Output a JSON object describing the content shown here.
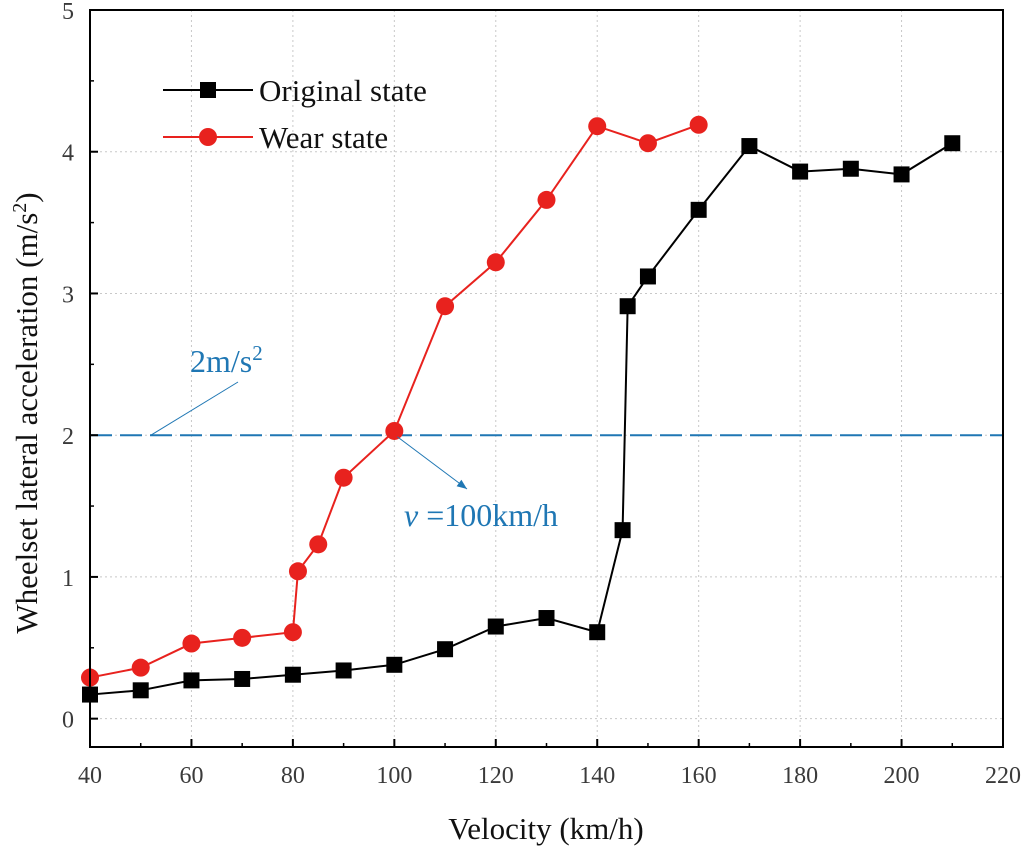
{
  "chart_data": {
    "type": "line",
    "title": "",
    "xlabel": "Velocity (km/h)",
    "ylabel_main": "Wheelset lateral acceleration  (m/s",
    "ylabel_sup": "2",
    "ylabel_close": ")",
    "xlim": [
      40,
      220
    ],
    "ylim": [
      -0.2,
      5
    ],
    "xticks": [
      40,
      60,
      80,
      100,
      120,
      140,
      160,
      180,
      200,
      220
    ],
    "yticks": [
      0,
      1,
      2,
      3,
      4,
      5
    ],
    "grid": true,
    "legend_position": "top-left",
    "series": [
      {
        "name": "Original state",
        "color": "#000000",
        "marker": "square",
        "x": [
          40,
          50,
          60,
          70,
          80,
          90,
          100,
          110,
          120,
          130,
          140,
          145,
          146,
          150,
          160,
          170,
          180,
          190,
          200,
          210
        ],
        "y": [
          0.17,
          0.2,
          0.27,
          0.28,
          0.31,
          0.34,
          0.38,
          0.49,
          0.65,
          0.71,
          0.61,
          1.33,
          2.91,
          3.12,
          3.59,
          4.04,
          3.86,
          3.88,
          3.84,
          4.06
        ]
      },
      {
        "name": "Wear state",
        "color": "#e8221e",
        "marker": "circle",
        "x": [
          40,
          50,
          60,
          70,
          80,
          81,
          85,
          90,
          100,
          110,
          120,
          130,
          140,
          150,
          160
        ],
        "y": [
          0.29,
          0.36,
          0.53,
          0.57,
          0.61,
          1.04,
          1.23,
          1.7,
          2.03,
          2.91,
          3.22,
          3.66,
          4.18,
          4.06,
          4.19
        ]
      }
    ],
    "reference_line": {
      "y": 2,
      "color": "#1f77b4",
      "style": "dashed"
    },
    "annotations": [
      {
        "id": "threshold",
        "text_main": "2m/s",
        "text_sup": "2",
        "color": "#1f77b4",
        "points_to": [
          52,
          2
        ]
      },
      {
        "id": "crossing",
        "text_italic": "v",
        "text_main": " =100km/h",
        "color": "#1f77b4",
        "points_to": [
          100,
          2.01
        ]
      }
    ]
  }
}
